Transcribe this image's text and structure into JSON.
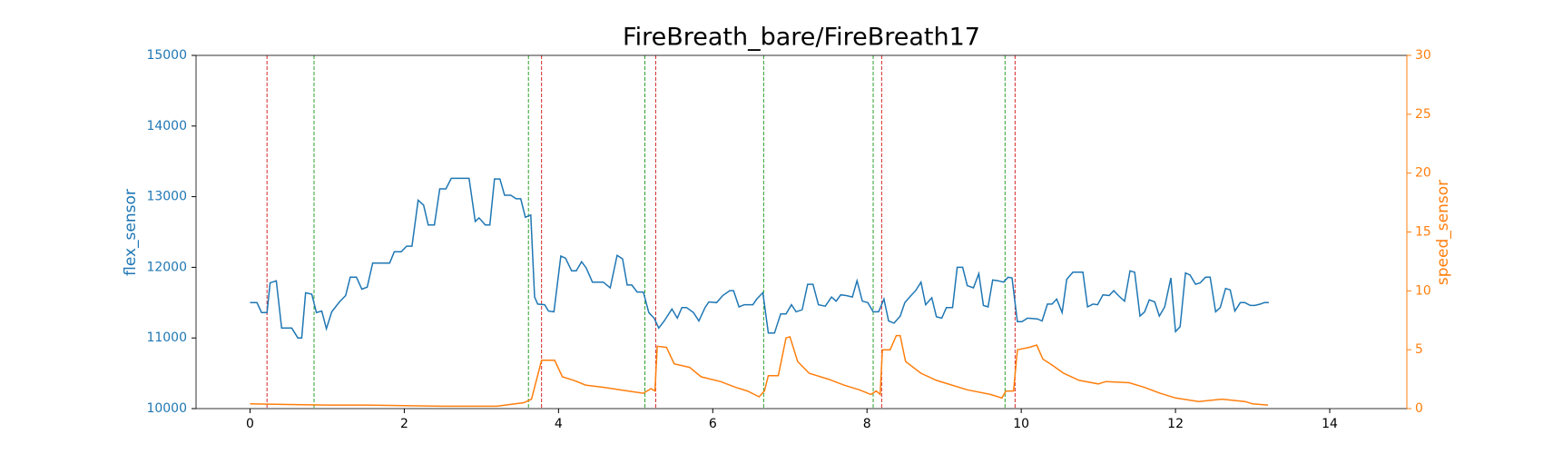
{
  "chart_data": {
    "type": "line",
    "title": "FireBreath_bare/FireBreath17",
    "xlim": [
      -0.7,
      15.0
    ],
    "xticks": [
      0,
      2,
      4,
      6,
      8,
      10,
      12,
      14
    ],
    "ylim": [
      10000,
      15000
    ],
    "yticks": [
      10000,
      11000,
      12000,
      13000,
      14000,
      15000
    ],
    "y2lim": [
      0,
      30
    ],
    "y2ticks": [
      0,
      5,
      10,
      15,
      20,
      25,
      30
    ],
    "series": [
      {
        "name": "flex_sensor",
        "color": "#1f77b4",
        "x": [
          0,
          0.09,
          0.15,
          0.22,
          0.26,
          0.34,
          0.41,
          0.54,
          0.62,
          0.67,
          0.72,
          0.8,
          0.86,
          0.93,
          0.99,
          1.06,
          1.16,
          1.24,
          1.3,
          1.38,
          1.45,
          1.52,
          1.59,
          1.81,
          1.87,
          1.96,
          2.03,
          2.1,
          2.18,
          2.25,
          2.31,
          2.39,
          2.46,
          2.54,
          2.61,
          2.84,
          2.92,
          2.97,
          3.05,
          3.11,
          3.17,
          3.24,
          3.3,
          3.38,
          3.45,
          3.51,
          3.57,
          3.64,
          3.69,
          3.73,
          3.82,
          3.87,
          3.94,
          4.03,
          4.09,
          4.17,
          4.23,
          4.3,
          4.36,
          4.44,
          4.58,
          4.67,
          4.76,
          4.83,
          4.89,
          4.95,
          5.02,
          5.1,
          5.17,
          5.24,
          5.3,
          5.37,
          5.47,
          5.54,
          5.6,
          5.66,
          5.75,
          5.82,
          5.9,
          5.95,
          6.05,
          6.13,
          6.22,
          6.27,
          6.34,
          6.41,
          6.52,
          6.57,
          6.65,
          6.72,
          6.8,
          6.88,
          6.95,
          7.02,
          7.08,
          7.16,
          7.23,
          7.3,
          7.37,
          7.46,
          7.54,
          7.6,
          7.66,
          7.73,
          7.81,
          7.87,
          7.94,
          8.01,
          8.08,
          8.15,
          8.22,
          8.28,
          8.35,
          8.43,
          8.49,
          8.57,
          8.63,
          8.7,
          8.76,
          8.84,
          8.9,
          8.97,
          9.03,
          9.11,
          9.17,
          9.24,
          9.3,
          9.38,
          9.45,
          9.51,
          9.57,
          9.63,
          9.7,
          9.77,
          9.83,
          9.88,
          9.95,
          10.01,
          10.08,
          10.21,
          10.27,
          10.34,
          10.4,
          10.46,
          10.53,
          10.59,
          10.67,
          10.8,
          10.86,
          10.93,
          10.99,
          11.06,
          11.14,
          11.2,
          11.26,
          11.34,
          11.41,
          11.47,
          11.54,
          11.6,
          11.66,
          11.73,
          11.79,
          11.86,
          11.94,
          12.0,
          12.06,
          12.13,
          12.19,
          12.26,
          12.32,
          12.39,
          12.45,
          12.52,
          12.58,
          12.65,
          12.71,
          12.77,
          12.84,
          12.9,
          12.97,
          13.03,
          13.1,
          13.15,
          13.21
        ],
        "values": [
          11500,
          11500,
          11360,
          11360,
          11780,
          11810,
          11140,
          11140,
          11000,
          11000,
          11640,
          11620,
          11360,
          11380,
          11130,
          11370,
          11510,
          11600,
          11860,
          11860,
          11690,
          11720,
          12060,
          12060,
          12220,
          12220,
          12300,
          12300,
          12950,
          12880,
          12600,
          12600,
          13110,
          13110,
          13260,
          13260,
          12650,
          12700,
          12600,
          12600,
          13250,
          13250,
          13020,
          13020,
          12970,
          12970,
          12710,
          12740,
          11580,
          11480,
          11470,
          11380,
          11370,
          12160,
          12130,
          11950,
          11950,
          12080,
          11990,
          11790,
          11790,
          11710,
          12170,
          12120,
          11750,
          11750,
          11650,
          11650,
          11360,
          11280,
          11140,
          11240,
          11410,
          11280,
          11430,
          11430,
          11360,
          11240,
          11430,
          11510,
          11500,
          11600,
          11670,
          11670,
          11440,
          11470,
          11470,
          11550,
          11640,
          11070,
          11070,
          11340,
          11340,
          11470,
          11370,
          11400,
          11760,
          11760,
          11470,
          11450,
          11580,
          11520,
          11610,
          11600,
          11580,
          11810,
          11520,
          11500,
          11370,
          11370,
          11550,
          11240,
          11210,
          11310,
          11500,
          11600,
          11670,
          11790,
          11470,
          11570,
          11300,
          11280,
          11430,
          11430,
          12000,
          12000,
          11740,
          11710,
          11910,
          11460,
          11440,
          11820,
          11810,
          11790,
          11860,
          11850,
          11230,
          11230,
          11280,
          11270,
          11240,
          11480,
          11480,
          11550,
          11360,
          11830,
          11930,
          11930,
          11440,
          11480,
          11470,
          11610,
          11600,
          11670,
          11600,
          11520,
          11950,
          11930,
          11310,
          11370,
          11540,
          11510,
          11310,
          11440,
          11850,
          11090,
          11160,
          11920,
          11890,
          11760,
          11780,
          11860,
          11860,
          11370,
          11430,
          11700,
          11680,
          11380,
          11500,
          11500,
          11460,
          11460,
          11480,
          11500,
          11500
        ]
      },
      {
        "name": "speed_sensor",
        "color": "#ff7f0e",
        "axis": "y2",
        "x": [
          0,
          0.5,
          1.0,
          1.5,
          2.0,
          2.5,
          3.0,
          3.2,
          3.55,
          3.65,
          3.78,
          3.95,
          4.05,
          4.2,
          4.35,
          4.6,
          4.9,
          5.1,
          5.2,
          5.25,
          5.28,
          5.4,
          5.5,
          5.7,
          5.85,
          6.1,
          6.3,
          6.45,
          6.6,
          6.67,
          6.72,
          6.85,
          6.95,
          7.0,
          7.1,
          7.25,
          7.5,
          7.7,
          7.9,
          8.05,
          8.12,
          8.17,
          8.2,
          8.3,
          8.38,
          8.43,
          8.5,
          8.7,
          8.9,
          9.1,
          9.3,
          9.6,
          9.75,
          9.8,
          9.9,
          9.95,
          10.1,
          10.2,
          10.28,
          10.4,
          10.55,
          10.75,
          11.0,
          11.1,
          11.4,
          11.6,
          11.8,
          12.0,
          12.3,
          12.6,
          12.9,
          13.0,
          13.2
        ],
        "values": [
          0.4,
          0.35,
          0.3,
          0.3,
          0.25,
          0.2,
          0.2,
          0.2,
          0.5,
          0.8,
          4.1,
          4.1,
          2.7,
          2.4,
          2.0,
          1.8,
          1.5,
          1.3,
          1.7,
          1.5,
          5.3,
          5.2,
          3.8,
          3.5,
          2.7,
          2.3,
          1.8,
          1.5,
          1.0,
          1.5,
          2.8,
          2.8,
          6.0,
          6.1,
          4.0,
          3.0,
          2.5,
          2.0,
          1.6,
          1.2,
          1.5,
          1.2,
          5.0,
          5.0,
          6.2,
          6.2,
          4.0,
          3.0,
          2.4,
          2.0,
          1.6,
          1.2,
          0.9,
          1.5,
          1.5,
          5.0,
          5.2,
          5.4,
          4.2,
          3.7,
          3.0,
          2.4,
          2.1,
          2.3,
          2.2,
          1.8,
          1.3,
          0.9,
          0.6,
          0.8,
          0.6,
          0.4,
          0.3
        ]
      }
    ],
    "vlines": [
      {
        "color": "#d62728",
        "x": [
          0.22,
          3.78,
          5.26,
          8.19,
          9.92
        ]
      },
      {
        "color": "#2ca02c",
        "x": [
          0.83,
          3.61,
          5.12,
          6.66,
          8.08,
          9.79
        ]
      }
    ]
  }
}
